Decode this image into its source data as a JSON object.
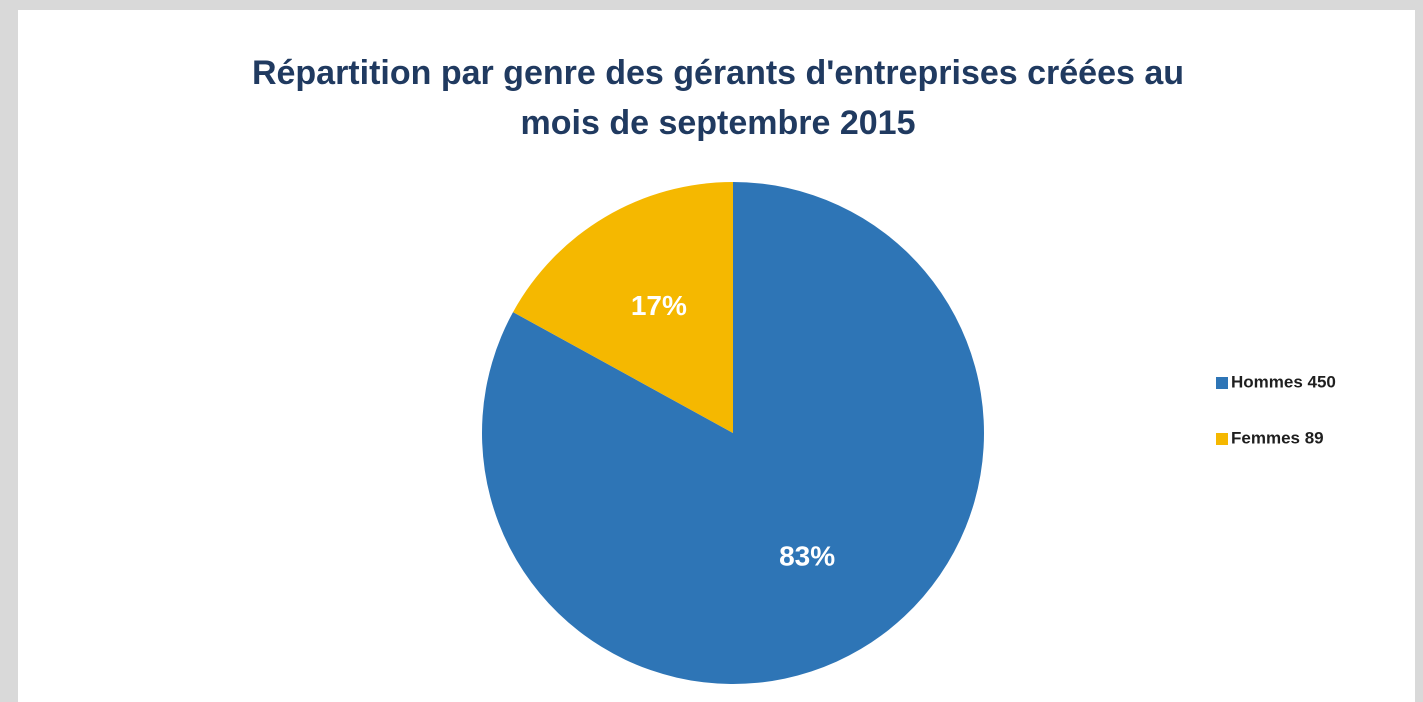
{
  "chart_data": {
    "type": "pie",
    "title": "Répartition par genre des gérants d'entreprises créées au mois de septembre 2015",
    "categories": [
      "Hommes 450",
      "Femmes 89"
    ],
    "values": [
      83,
      17
    ],
    "value_labels": [
      "83%",
      "17%"
    ],
    "colors": [
      "#2e75b6",
      "#f5b800"
    ],
    "legend": "right"
  }
}
